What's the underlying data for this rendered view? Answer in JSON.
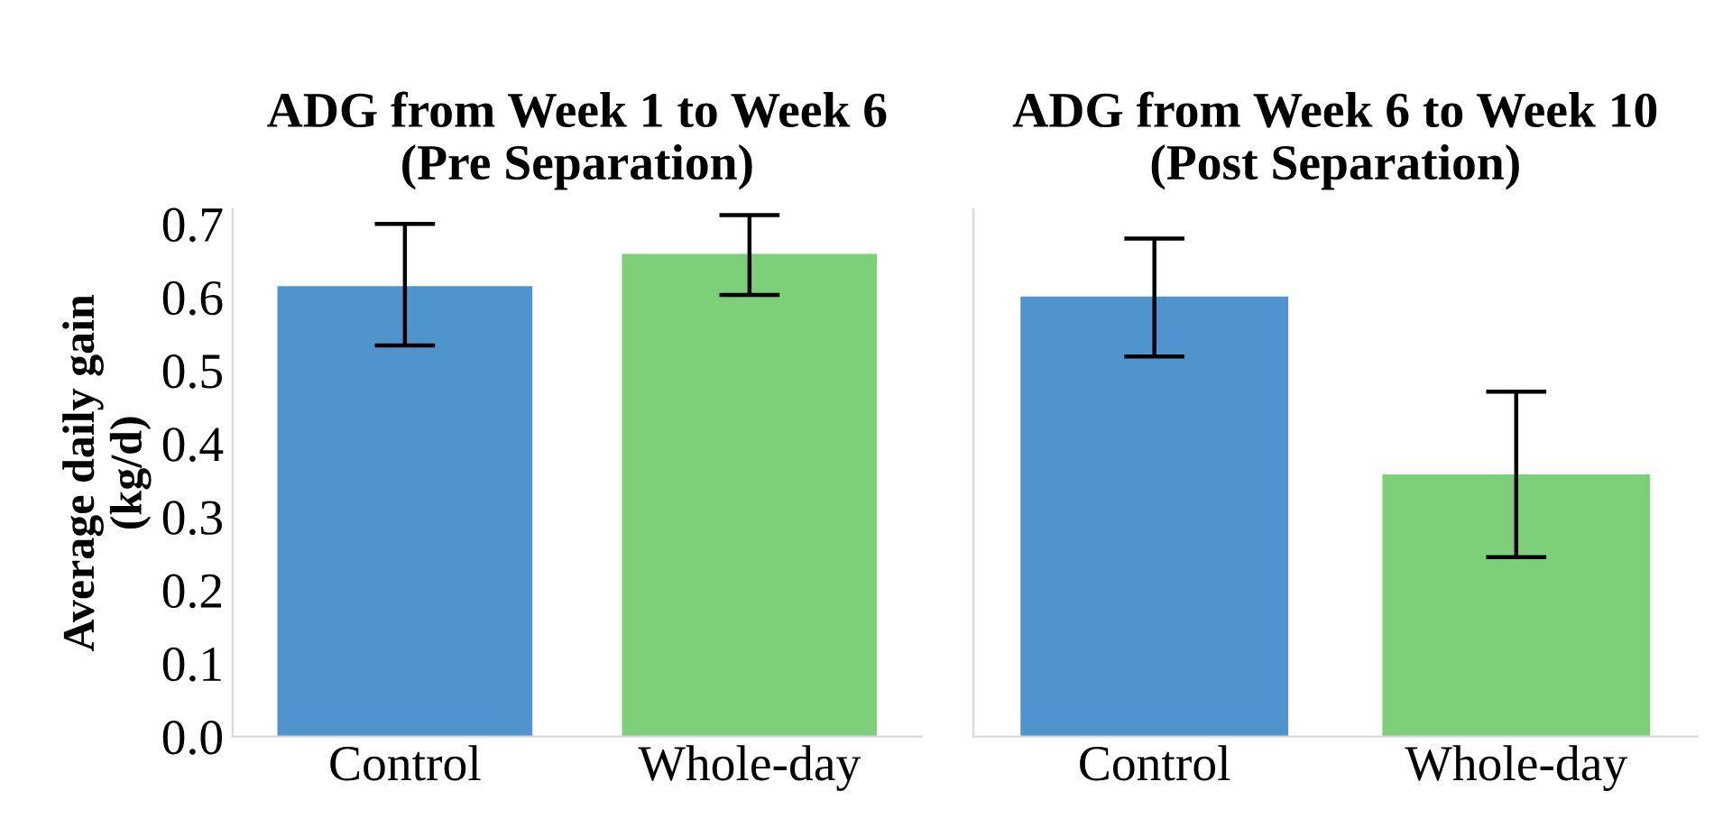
{
  "chart_data": [
    {
      "type": "bar",
      "title": "ADG from Week 1 to Week 6\n(Pre Separation)",
      "ylabel": "Average daily gain\n(kg/d)",
      "categories": [
        "Control",
        "Whole-day"
      ],
      "values": [
        0.615,
        0.659
      ],
      "colors": [
        "#4f94cd",
        "#7dcf7a"
      ],
      "errors": [
        [
          0.534,
          0.7
        ],
        [
          0.603,
          0.712
        ]
      ],
      "ylim": [
        0,
        0.72
      ],
      "yticks": [
        {
          "value": 0,
          "label": "0.0"
        },
        0.1,
        0.2,
        0.3,
        0.4,
        0.5,
        0.6,
        0.7
      ],
      "grid": false
    },
    {
      "type": "bar",
      "title": "ADG from Week 6 to Week 10\n(Post Separation)",
      "categories": [
        "Control",
        "Whole-day"
      ],
      "values": [
        0.601,
        0.358
      ],
      "colors": [
        "#4f94cd",
        "#7dcf7a"
      ],
      "errors": [
        [
          0.519,
          0.68
        ],
        [
          0.245,
          0.471
        ]
      ],
      "ylim": [
        0,
        0.72
      ],
      "yticks": [
        0,
        0.1,
        0.2,
        0.3,
        0.4,
        0.5,
        0.6,
        0.7
      ],
      "tick_labels": "x",
      "grid": false
    }
  ]
}
